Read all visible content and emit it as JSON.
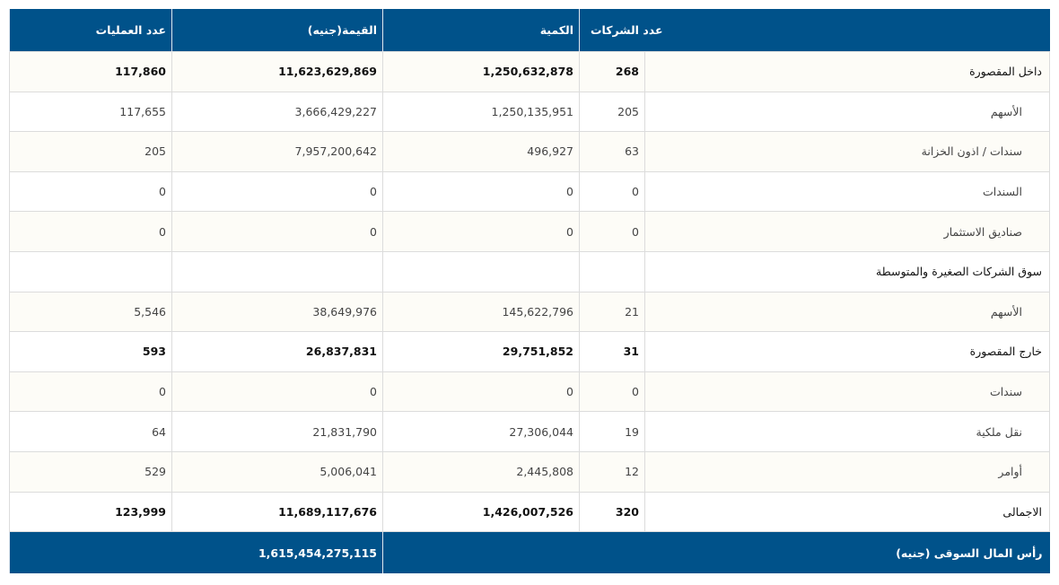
{
  "headers": {
    "companies": "عدد الشركات",
    "quantity": "الكمية",
    "value": "القيمة(جنيه)",
    "trades": "عدد العمليات"
  },
  "rows": [
    {
      "label": "داخل المقصورة",
      "companies": "268",
      "quantity": "1,250,632,878",
      "value": "11,623,629,869",
      "trades": "117,860",
      "bold": true
    },
    {
      "label": "الأسهم",
      "companies": "205",
      "quantity": "1,250,135,951",
      "value": "3,666,429,227",
      "trades": "117,655"
    },
    {
      "label": "سندات / اذون الخزانة",
      "companies": "63",
      "quantity": "496,927",
      "value": "7,957,200,642",
      "trades": "205"
    },
    {
      "label": "السندات",
      "companies": "0",
      "quantity": "0",
      "value": "0",
      "trades": "0"
    },
    {
      "label": "صناديق الاستثمار",
      "companies": "0",
      "quantity": "0",
      "value": "0",
      "trades": "0"
    },
    {
      "label": "سوق الشركات الصغيرة والمتوسطة",
      "companies": "",
      "quantity": "",
      "value": "",
      "trades": "",
      "main": true
    },
    {
      "label": "الأسهم",
      "companies": "21",
      "quantity": "145,622,796",
      "value": "38,649,976",
      "trades": "5,546"
    },
    {
      "label": "خارج المقصورة",
      "companies": "31",
      "quantity": "29,751,852",
      "value": "26,837,831",
      "trades": "593",
      "bold": true
    },
    {
      "label": "سندات",
      "companies": "0",
      "quantity": "0",
      "value": "0",
      "trades": "0"
    },
    {
      "label": "نقل ملكية",
      "companies": "19",
      "quantity": "27,306,044",
      "value": "21,831,790",
      "trades": "64"
    },
    {
      "label": "أوامر",
      "companies": "12",
      "quantity": "2,445,808",
      "value": "5,006,041",
      "trades": "529"
    },
    {
      "label": "الاجمالى",
      "companies": "320",
      "quantity": "1,426,007,526",
      "value": "11,689,117,676",
      "trades": "123,999",
      "bold": true
    }
  ],
  "footer": {
    "label": "رأس المال السوقى (جنيه)",
    "value": "1,615,454,275,115"
  },
  "colors": {
    "header": "#00528a",
    "odd_row": "#fdfcf7"
  }
}
